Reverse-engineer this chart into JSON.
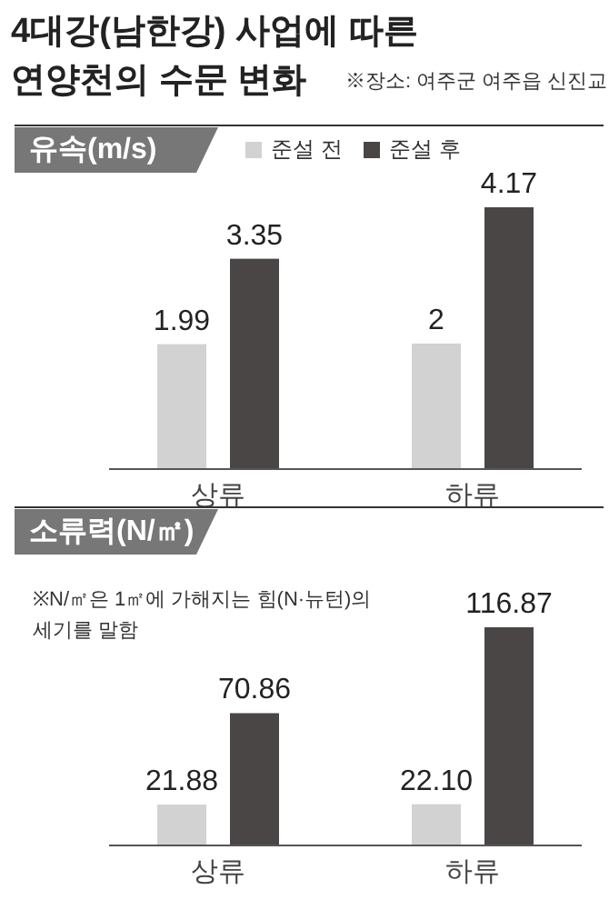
{
  "chart_data": [
    {
      "type": "bar",
      "title": "유속(m/s)",
      "annotations": [
        "4대강(남한강) 사업에 따른 연양천의 수문 변화",
        "※장소: 여주군 여주읍 신진교"
      ],
      "categories": [
        "상류",
        "하류"
      ],
      "series": [
        {
          "name": "준설 전",
          "color": "#d2d2d2",
          "values": [
            1.99,
            2
          ],
          "value_labels": [
            "1.99",
            "2"
          ]
        },
        {
          "name": "준설 후",
          "color": "#4a4646",
          "values": [
            3.35,
            4.17
          ],
          "value_labels": [
            "3.35",
            "4.17"
          ]
        }
      ],
      "legend": "top"
    },
    {
      "type": "bar",
      "title": "소류력(N/㎡)",
      "annotations": [
        "※N/㎡은 1㎡에 가해지는 힘(N·뉴턴)의 세기를 말함"
      ],
      "categories": [
        "상류",
        "하류"
      ],
      "series": [
        {
          "color": "#d2d2d2",
          "values": [
            21.88,
            22.1
          ],
          "value_labels": [
            "21.88",
            "22.10"
          ]
        },
        {
          "color": "#4a4646",
          "values": [
            70.86,
            116.87
          ],
          "value_labels": [
            "70.86",
            "116.87"
          ]
        }
      ]
    }
  ]
}
